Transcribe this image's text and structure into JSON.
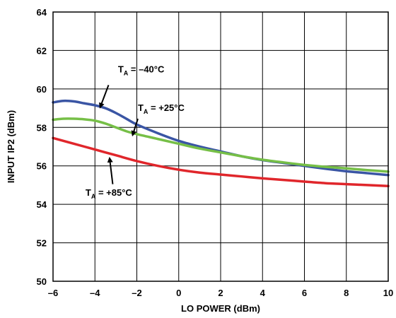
{
  "chart_data": {
    "type": "line",
    "title": "",
    "xlabel": "LO POWER (dBm)",
    "ylabel": "INPUT IP2 (dBm)",
    "xlim": [
      -6,
      10
    ],
    "ylim": [
      50,
      64
    ],
    "x_ticks": [
      -6,
      -4,
      -2,
      0,
      2,
      4,
      6,
      8,
      10
    ],
    "x_tick_labels": [
      "–6",
      "–4",
      "–2",
      "0",
      "2",
      "4",
      "6",
      "8",
      "10"
    ],
    "y_ticks": [
      50,
      52,
      54,
      56,
      58,
      60,
      62,
      64
    ],
    "y_tick_labels": [
      "50",
      "52",
      "54",
      "56",
      "58",
      "60",
      "62",
      "64"
    ],
    "grid": true,
    "legend": "none",
    "series": [
      {
        "color": "#3a55a4",
        "x": [
          -6,
          -5.5,
          -5,
          -4.5,
          -4,
          -3.5,
          -3,
          -2.5,
          -2,
          -1,
          0,
          1,
          2,
          3,
          4,
          5,
          6,
          7,
          8,
          9,
          10
        ],
        "y": [
          59.3,
          59.38,
          59.35,
          59.25,
          59.15,
          59.0,
          58.75,
          58.45,
          58.15,
          57.7,
          57.3,
          57.0,
          56.75,
          56.5,
          56.3,
          56.15,
          56.0,
          55.85,
          55.72,
          55.62,
          55.52
        ]
      },
      {
        "color": "#76bf47",
        "x": [
          -6,
          -5.5,
          -5,
          -4.5,
          -4,
          -3.5,
          -3,
          -2.5,
          -2,
          -1,
          0,
          1,
          2,
          3,
          4,
          5,
          6,
          7,
          8,
          9,
          10
        ],
        "y": [
          58.4,
          58.45,
          58.45,
          58.42,
          58.35,
          58.2,
          58.0,
          57.8,
          57.65,
          57.4,
          57.15,
          56.9,
          56.7,
          56.5,
          56.32,
          56.18,
          56.05,
          55.95,
          55.87,
          55.78,
          55.7
        ]
      },
      {
        "color": "#e0262b",
        "x": [
          -6,
          -5,
          -4,
          -3,
          -2,
          -1,
          0,
          1,
          2,
          3,
          4,
          5,
          6,
          7,
          8,
          9,
          10
        ],
        "y": [
          57.45,
          57.15,
          56.85,
          56.55,
          56.25,
          56.0,
          55.8,
          55.65,
          55.55,
          55.45,
          55.35,
          55.27,
          55.18,
          55.1,
          55.05,
          55.0,
          54.95
        ]
      }
    ],
    "annotations": [
      {
        "prefix": "T",
        "sub": "A",
        "text": " = –40°C",
        "series": 0
      },
      {
        "prefix": "T",
        "sub": "A",
        "text": " = +25°C",
        "series": 1
      },
      {
        "prefix": "T",
        "sub": "A",
        "text": " = +85°C",
        "series": 2
      }
    ]
  }
}
